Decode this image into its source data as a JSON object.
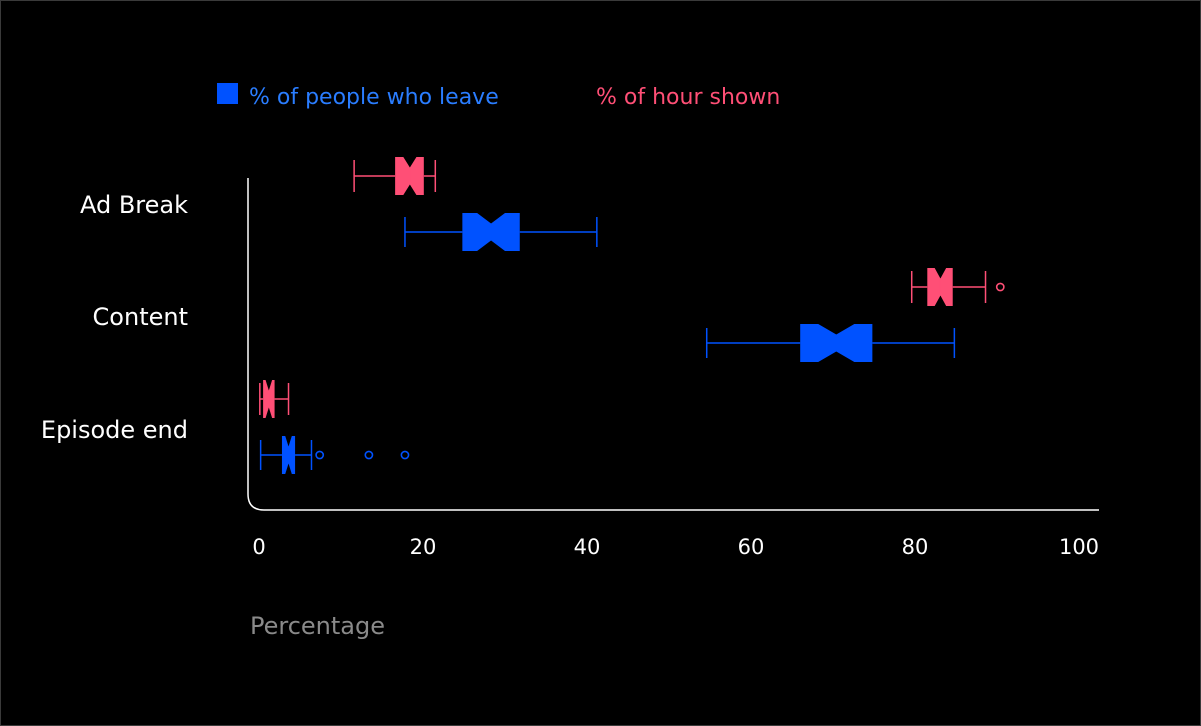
{
  "chart_data": {
    "type": "boxplot",
    "orientation": "horizontal",
    "notched": true,
    "categories": [
      "Ad Break",
      "Content",
      "Episode end"
    ],
    "xlabel": "Percentage",
    "xlim": [
      0,
      100
    ],
    "xticks": [
      0,
      20,
      40,
      60,
      80,
      100
    ],
    "legend_position": "top-left",
    "colors": {
      "background": "#000000",
      "axis": "#ffffff"
    },
    "series": [
      {
        "name": "% of people who leave",
        "color": "#0052ff",
        "boxes": [
          {
            "category": "Ad Break",
            "whisker_low": 17.8,
            "q1": 24.8,
            "median": 28.3,
            "q3": 31.8,
            "whisker_high": 41.2,
            "notch_low": 26.6,
            "notch_high": 30.0,
            "outliers": []
          },
          {
            "category": "Content",
            "whisker_low": 54.6,
            "q1": 66.0,
            "median": 70.4,
            "q3": 74.8,
            "whisker_high": 84.8,
            "notch_low": 68.2,
            "notch_high": 72.6,
            "outliers": []
          },
          {
            "category": "Episode end",
            "whisker_low": 0.2,
            "q1": 2.8,
            "median": 3.6,
            "q3": 4.4,
            "whisker_high": 6.4,
            "notch_low": 3.2,
            "notch_high": 4.0,
            "outliers": [
              7.4,
              13.4,
              17.8
            ]
          }
        ]
      },
      {
        "name": "% of hour shown",
        "color": "#ff4f76",
        "boxes": [
          {
            "category": "Ad Break",
            "whisker_low": 11.6,
            "q1": 16.6,
            "median": 18.4,
            "q3": 20.1,
            "whisker_high": 21.5,
            "notch_low": 17.6,
            "notch_high": 19.2,
            "outliers": []
          },
          {
            "category": "Content",
            "whisker_low": 79.6,
            "q1": 81.5,
            "median": 83.1,
            "q3": 84.6,
            "whisker_high": 88.6,
            "notch_low": 82.4,
            "notch_high": 83.8,
            "outliers": [
              90.4
            ]
          },
          {
            "category": "Episode end",
            "whisker_low": 0.1,
            "q1": 0.5,
            "median": 1.2,
            "q3": 1.9,
            "whisker_high": 3.6,
            "notch_low": 0.8,
            "notch_high": 1.6,
            "outliers": []
          }
        ]
      }
    ]
  }
}
